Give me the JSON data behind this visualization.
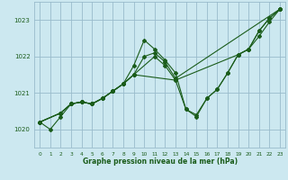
{
  "title": "Graphe pression niveau de la mer (hPa)",
  "bg_color": "#cce8f0",
  "grid_color": "#99bbcc",
  "line_color": "#1a5c1a",
  "xlim": [
    -0.5,
    23.5
  ],
  "ylim": [
    1019.5,
    1023.5
  ],
  "yticks": [
    1020,
    1021,
    1022,
    1023
  ],
  "xticks": [
    0,
    1,
    2,
    3,
    4,
    5,
    6,
    7,
    8,
    9,
    10,
    11,
    12,
    13,
    14,
    15,
    16,
    17,
    18,
    19,
    20,
    21,
    22,
    23
  ],
  "lines": [
    {
      "x": [
        0,
        1,
        2,
        3,
        4,
        5,
        6,
        7,
        8,
        9,
        10,
        11,
        12,
        13,
        14,
        15,
        16,
        17,
        18,
        19,
        20,
        21,
        22,
        23
      ],
      "y": [
        1020.2,
        1020.0,
        1020.35,
        1020.7,
        1020.75,
        1020.7,
        1020.85,
        1021.05,
        1021.25,
        1021.75,
        1022.45,
        1022.2,
        1021.9,
        1021.55,
        1020.55,
        1020.4,
        1020.85,
        1021.1,
        1021.55,
        1022.05,
        1022.2,
        1022.7,
        1023.05,
        1023.3
      ]
    },
    {
      "x": [
        0,
        2,
        3,
        4,
        5,
        6,
        7,
        8,
        9,
        10,
        11,
        12,
        13,
        23
      ],
      "y": [
        1020.2,
        1020.45,
        1020.7,
        1020.75,
        1020.7,
        1020.85,
        1021.05,
        1021.25,
        1021.5,
        1022.0,
        1022.1,
        1021.85,
        1021.4,
        1023.3
      ]
    },
    {
      "x": [
        0,
        2,
        3,
        4,
        5,
        6,
        7,
        8,
        9,
        11,
        12,
        13,
        19,
        20,
        21,
        22,
        23
      ],
      "y": [
        1020.2,
        1020.45,
        1020.7,
        1020.75,
        1020.7,
        1020.85,
        1021.05,
        1021.25,
        1021.5,
        1022.0,
        1021.75,
        1021.35,
        1022.05,
        1022.2,
        1022.55,
        1022.95,
        1023.3
      ]
    },
    {
      "x": [
        0,
        2,
        3,
        4,
        5,
        6,
        7,
        8,
        9,
        13,
        14,
        15,
        16,
        17,
        18,
        19,
        20,
        21,
        22,
        23
      ],
      "y": [
        1020.2,
        1020.45,
        1020.7,
        1020.75,
        1020.7,
        1020.85,
        1021.05,
        1021.25,
        1021.5,
        1021.35,
        1020.55,
        1020.35,
        1020.85,
        1021.1,
        1021.55,
        1022.05,
        1022.2,
        1022.7,
        1023.05,
        1023.3
      ]
    }
  ]
}
